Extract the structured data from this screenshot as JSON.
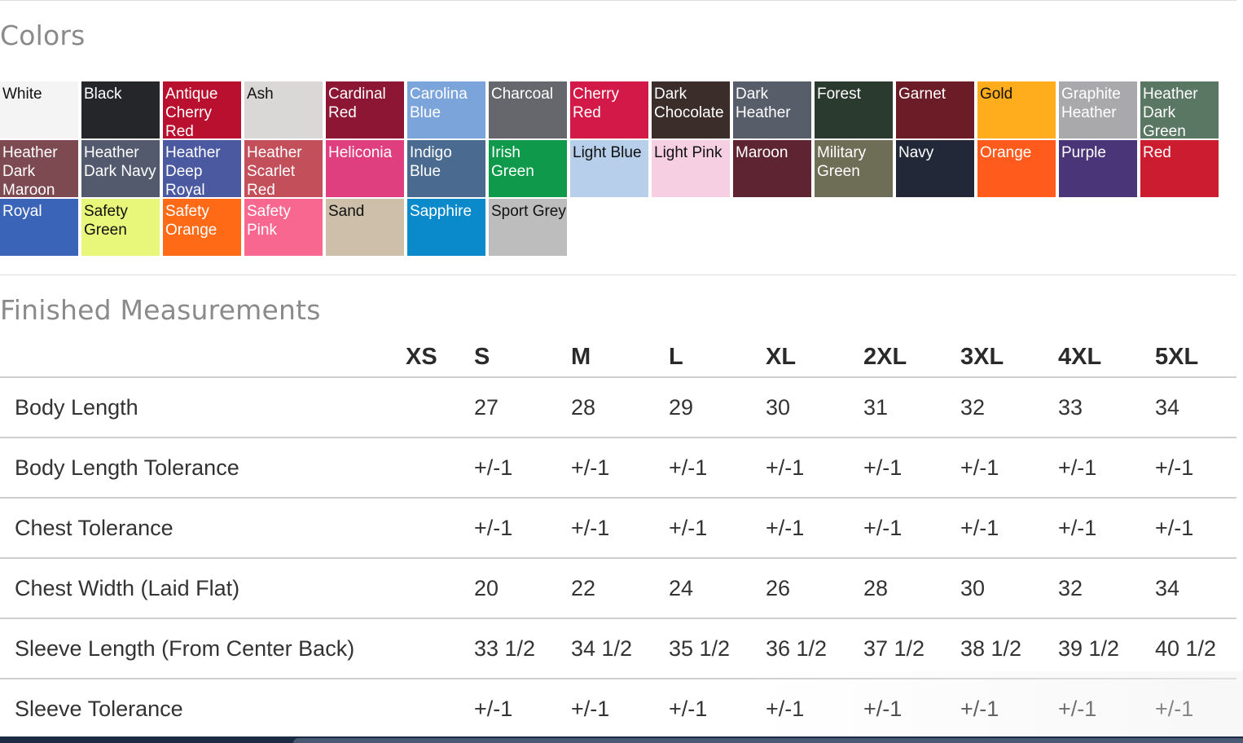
{
  "colors_section": {
    "title": "Colors",
    "swatches": [
      {
        "name": "White",
        "color": "#f4f4f4",
        "text_color": "#111111"
      },
      {
        "name": "Black",
        "color": "#25262a",
        "text_color": "#ffffff"
      },
      {
        "name": "Antique Cherry Red",
        "color": "#b8102e",
        "text_color": "#ffffff"
      },
      {
        "name": "Ash",
        "color": "#d9d8d6",
        "text_color": "#111111"
      },
      {
        "name": "Cardinal Red",
        "color": "#8c1633",
        "text_color": "#ffffff"
      },
      {
        "name": "Carolina Blue",
        "color": "#7ba4db",
        "text_color": "#ffffff"
      },
      {
        "name": "Charcoal",
        "color": "#66676c",
        "text_color": "#ffffff"
      },
      {
        "name": "Cherry Red",
        "color": "#d21947",
        "text_color": "#ffffff"
      },
      {
        "name": "Dark Chocolate",
        "color": "#3b2e2a",
        "text_color": "#ffffff"
      },
      {
        "name": "Dark Heather",
        "color": "#575e6a",
        "text_color": "#ffffff"
      },
      {
        "name": "Forest",
        "color": "#2b3a2e",
        "text_color": "#ffffff"
      },
      {
        "name": "Garnet",
        "color": "#6b1c27",
        "text_color": "#ffffff"
      },
      {
        "name": "Gold",
        "color": "#ffad1d",
        "text_color": "#111111"
      },
      {
        "name": "Graphite Heather",
        "color": "#a9a9ab",
        "text_color": "#ffffff"
      },
      {
        "name": "Heather Dark Green",
        "color": "#597763",
        "text_color": "#ffffff"
      },
      {
        "name": "Heather Dark Maroon",
        "color": "#7e4a52",
        "text_color": "#ffffff"
      },
      {
        "name": "Heather Dark Navy",
        "color": "#545a6d",
        "text_color": "#ffffff"
      },
      {
        "name": "Heather Deep Royal",
        "color": "#4b5aa0",
        "text_color": "#ffffff"
      },
      {
        "name": "Heather Scarlet Red",
        "color": "#c24f5a",
        "text_color": "#ffffff"
      },
      {
        "name": "Heliconia",
        "color": "#e03f7f",
        "text_color": "#ffffff"
      },
      {
        "name": "Indigo Blue",
        "color": "#4a6a8f",
        "text_color": "#ffffff"
      },
      {
        "name": "Irish Green",
        "color": "#0e9a4a",
        "text_color": "#ffffff"
      },
      {
        "name": "Light Blue",
        "color": "#b7cfea",
        "text_color": "#111111"
      },
      {
        "name": "Light Pink",
        "color": "#f6cfe3",
        "text_color": "#111111"
      },
      {
        "name": "Maroon",
        "color": "#5f2432",
        "text_color": "#ffffff"
      },
      {
        "name": "Military Green",
        "color": "#6e6d56",
        "text_color": "#ffffff"
      },
      {
        "name": "Navy",
        "color": "#222838",
        "text_color": "#ffffff"
      },
      {
        "name": "Orange",
        "color": "#ff5b1d",
        "text_color": "#ffffff"
      },
      {
        "name": "Purple",
        "color": "#4a3578",
        "text_color": "#ffffff"
      },
      {
        "name": "Red",
        "color": "#cc1d30",
        "text_color": "#ffffff"
      },
      {
        "name": "Royal",
        "color": "#3a64b8",
        "text_color": "#ffffff"
      },
      {
        "name": "Safety Green",
        "color": "#e8f77a",
        "text_color": "#111111"
      },
      {
        "name": "Safety Orange",
        "color": "#ff6a17",
        "text_color": "#ffffff"
      },
      {
        "name": "Safety Pink",
        "color": "#f7678f",
        "text_color": "#ffffff"
      },
      {
        "name": "Sand",
        "color": "#cdbfa9",
        "text_color": "#111111"
      },
      {
        "name": "Sapphire",
        "color": "#0a8acb",
        "text_color": "#ffffff"
      },
      {
        "name": "Sport Grey",
        "color": "#bdbdbd",
        "text_color": "#111111"
      }
    ]
  },
  "measurements_section": {
    "title": "Finished Measurements",
    "sizes": [
      "XS",
      "S",
      "M",
      "L",
      "XL",
      "2XL",
      "3XL",
      "4XL",
      "5XL"
    ],
    "rows": [
      {
        "label": "Body Length",
        "values": [
          "",
          "27",
          "28",
          "29",
          "30",
          "31",
          "32",
          "33",
          "34"
        ]
      },
      {
        "label": "Body Length Tolerance",
        "values": [
          "",
          "+/-1",
          "+/-1",
          "+/-1",
          "+/-1",
          "+/-1",
          "+/-1",
          "+/-1",
          "+/-1"
        ]
      },
      {
        "label": "Chest Tolerance",
        "values": [
          "",
          "+/-1",
          "+/-1",
          "+/-1",
          "+/-1",
          "+/-1",
          "+/-1",
          "+/-1",
          "+/-1"
        ]
      },
      {
        "label": "Chest Width (Laid Flat)",
        "values": [
          "",
          "20",
          "22",
          "24",
          "26",
          "28",
          "30",
          "32",
          "34"
        ]
      },
      {
        "label": "Sleeve Length (From Center Back)",
        "values": [
          "",
          "33 1/2",
          "34 1/2",
          "35 1/2",
          "36 1/2",
          "37 1/2",
          "38 1/2",
          "39 1/2",
          "40 1/2"
        ]
      },
      {
        "label": "Sleeve Tolerance",
        "values": [
          "",
          "+/-1",
          "+/-1",
          "+/-1",
          "+/-1",
          "+/-1",
          "+/-1",
          "+/-1",
          "+/-1"
        ]
      }
    ]
  }
}
